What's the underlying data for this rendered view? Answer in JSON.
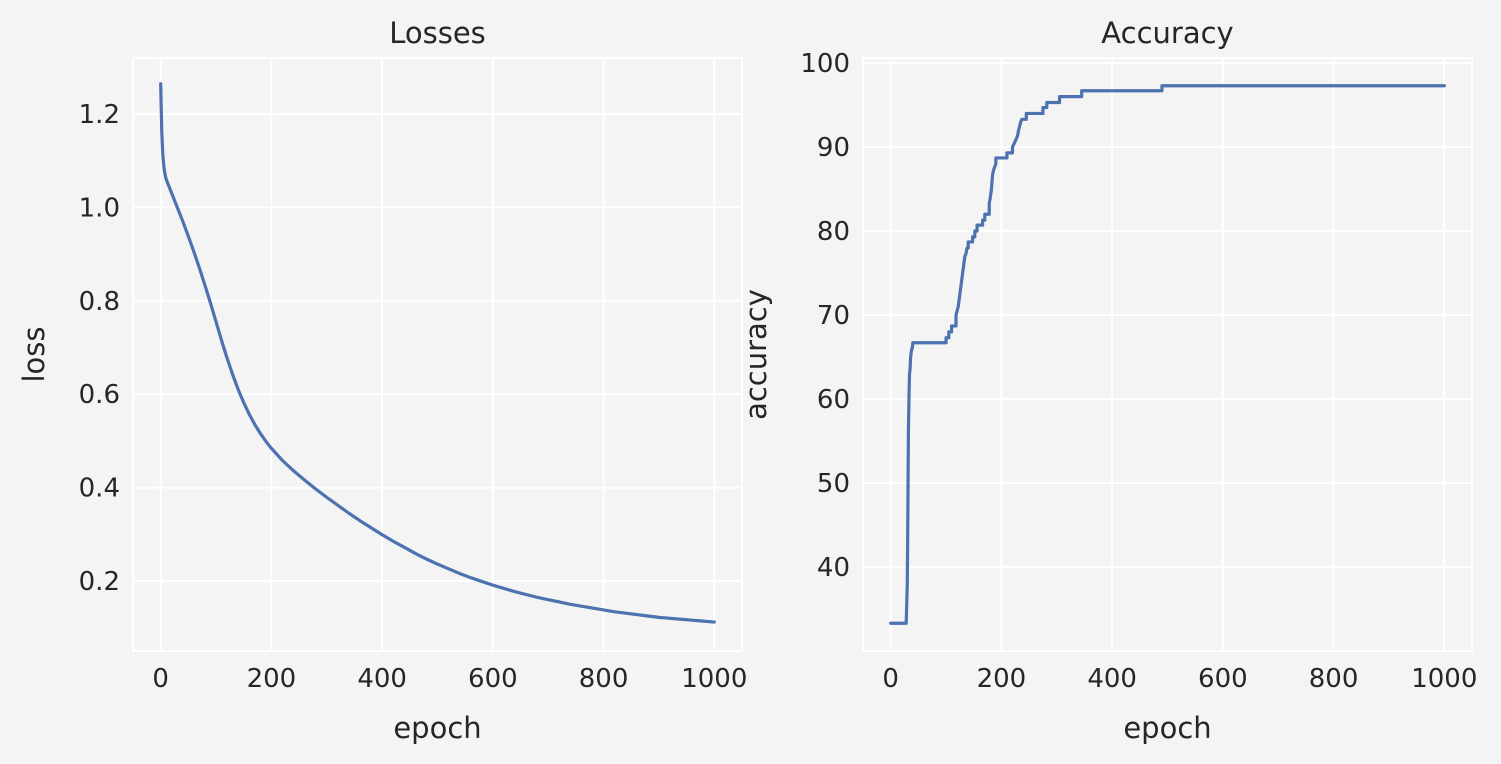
{
  "colors": {
    "background": "#f4f4f4",
    "grid": "#ffffff",
    "series": "#4c72b0",
    "text": "#262626"
  },
  "chart_data": [
    {
      "type": "line",
      "title": "Losses",
      "xlabel": "epoch",
      "ylabel": "loss",
      "xlim": [
        -50,
        1050
      ],
      "ylim": [
        0.05,
        1.32
      ],
      "xticks": [
        0,
        200,
        400,
        600,
        800,
        1000
      ],
      "yticks": [
        0.2,
        0.4,
        0.6,
        0.8,
        1.0,
        1.2
      ],
      "ytick_labels": [
        "0.2",
        "0.4",
        "0.6",
        "0.8",
        "1.0",
        "1.2"
      ],
      "grid": true,
      "series": [
        {
          "x": [
            0,
            2,
            4,
            6,
            8,
            10,
            15,
            20,
            30,
            40,
            50,
            60,
            70,
            80,
            90,
            100,
            110,
            120,
            130,
            140,
            150,
            160,
            170,
            180,
            190,
            200,
            220,
            240,
            260,
            280,
            300,
            320,
            340,
            360,
            380,
            400,
            420,
            440,
            460,
            480,
            500,
            520,
            540,
            560,
            580,
            600,
            620,
            640,
            660,
            680,
            700,
            720,
            740,
            760,
            780,
            800,
            820,
            840,
            860,
            880,
            900,
            920,
            940,
            960,
            980,
            1000
          ],
          "y": [
            1.265,
            1.16,
            1.11,
            1.085,
            1.07,
            1.06,
            1.045,
            1.03,
            1.0,
            0.97,
            0.938,
            0.905,
            0.87,
            0.833,
            0.795,
            0.755,
            0.715,
            0.677,
            0.642,
            0.61,
            0.582,
            0.557,
            0.535,
            0.516,
            0.499,
            0.484,
            0.458,
            0.436,
            0.416,
            0.397,
            0.379,
            0.362,
            0.345,
            0.329,
            0.314,
            0.299,
            0.285,
            0.272,
            0.259,
            0.247,
            0.236,
            0.226,
            0.216,
            0.207,
            0.199,
            0.191,
            0.184,
            0.177,
            0.171,
            0.165,
            0.16,
            0.155,
            0.15,
            0.146,
            0.142,
            0.138,
            0.134,
            0.131,
            0.128,
            0.125,
            0.122,
            0.12,
            0.118,
            0.116,
            0.114,
            0.112
          ]
        }
      ]
    },
    {
      "type": "line",
      "title": "Accuracy",
      "xlabel": "epoch",
      "ylabel": "accuracy",
      "xlim": [
        -50,
        1050
      ],
      "ylim": [
        30,
        100.6
      ],
      "xticks": [
        0,
        200,
        400,
        600,
        800,
        1000
      ],
      "yticks": [
        40,
        50,
        60,
        70,
        80,
        90,
        100
      ],
      "ytick_labels": [
        "40",
        "50",
        "60",
        "70",
        "80",
        "90",
        "100"
      ],
      "grid": true,
      "series": [
        {
          "x": [
            0,
            28,
            30,
            31,
            32,
            33,
            34,
            35,
            36,
            37,
            38,
            39,
            40,
            100,
            100,
            105,
            105,
            110,
            110,
            118,
            118,
            122,
            124,
            126,
            128,
            130,
            132,
            134,
            136,
            138,
            140,
            140,
            148,
            148,
            152,
            152,
            156,
            156,
            166,
            166,
            170,
            170,
            178,
            178,
            180,
            182,
            184,
            186,
            190,
            190,
            210,
            210,
            220,
            220,
            225,
            227,
            229,
            231,
            233,
            235,
            237,
            240,
            245,
            245,
            275,
            275,
            282,
            282,
            305,
            305,
            345,
            345,
            490,
            490,
            1000
          ],
          "y": [
            33.3,
            33.3,
            38,
            46,
            56,
            60,
            63,
            63.5,
            65,
            65.5,
            66,
            66,
            66.7,
            66.7,
            67.3,
            67.3,
            68,
            68,
            68.7,
            68.7,
            70,
            71,
            72,
            73,
            74,
            75,
            76,
            77,
            77.3,
            78,
            78,
            78.7,
            78.7,
            79.3,
            79.3,
            80,
            80,
            80.7,
            80.7,
            81.3,
            81.3,
            82,
            82,
            83.3,
            84,
            85,
            86.7,
            87.3,
            88,
            88.7,
            88.7,
            89.3,
            89.3,
            90,
            90.7,
            91,
            91.3,
            92,
            92.5,
            93,
            93.3,
            93.3,
            93.3,
            94,
            94,
            94.7,
            94.7,
            95.3,
            95.3,
            96,
            96,
            96.7,
            96.7,
            97.3,
            97.3
          ]
        }
      ]
    }
  ]
}
